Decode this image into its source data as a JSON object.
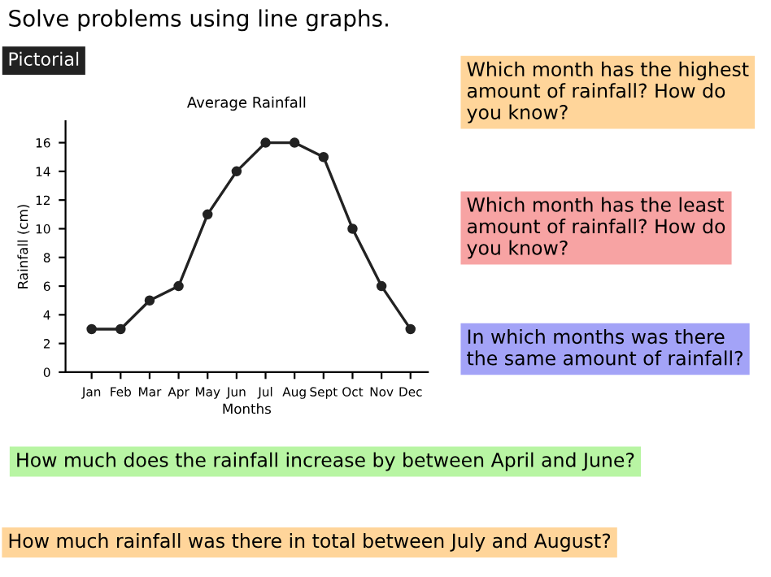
{
  "chart_data": {
    "type": "line",
    "title": "Average Rainfall",
    "xlabel": "Months",
    "ylabel": "Rainfall (cm)",
    "categories": [
      "Jan",
      "Feb",
      "Mar",
      "Apr",
      "May",
      "Jun",
      "Jul",
      "Aug",
      "Sept",
      "Oct",
      "Nov",
      "Dec"
    ],
    "values": [
      3,
      3,
      5,
      6,
      11,
      14,
      16,
      16,
      15,
      10,
      6,
      3
    ],
    "color": "#222222",
    "marker": "circle",
    "line_style": "solid",
    "ylim": [
      0,
      17.5
    ],
    "yticks": [
      0,
      2,
      4,
      6,
      8,
      10,
      12,
      14,
      16
    ],
    "grid": false,
    "annotations": [
      "Solve problems using line graphs.",
      "Pictorial",
      "Which month has the highest amount of rainfall? How do you know?",
      "Which month has the least amount of rainfall? How do you know?",
      "In which months was there the same amount of rainfall?",
      "How much does the rainfall increase by between April and June?",
      "How much rainfall was there in total between July and August?"
    ]
  }
}
